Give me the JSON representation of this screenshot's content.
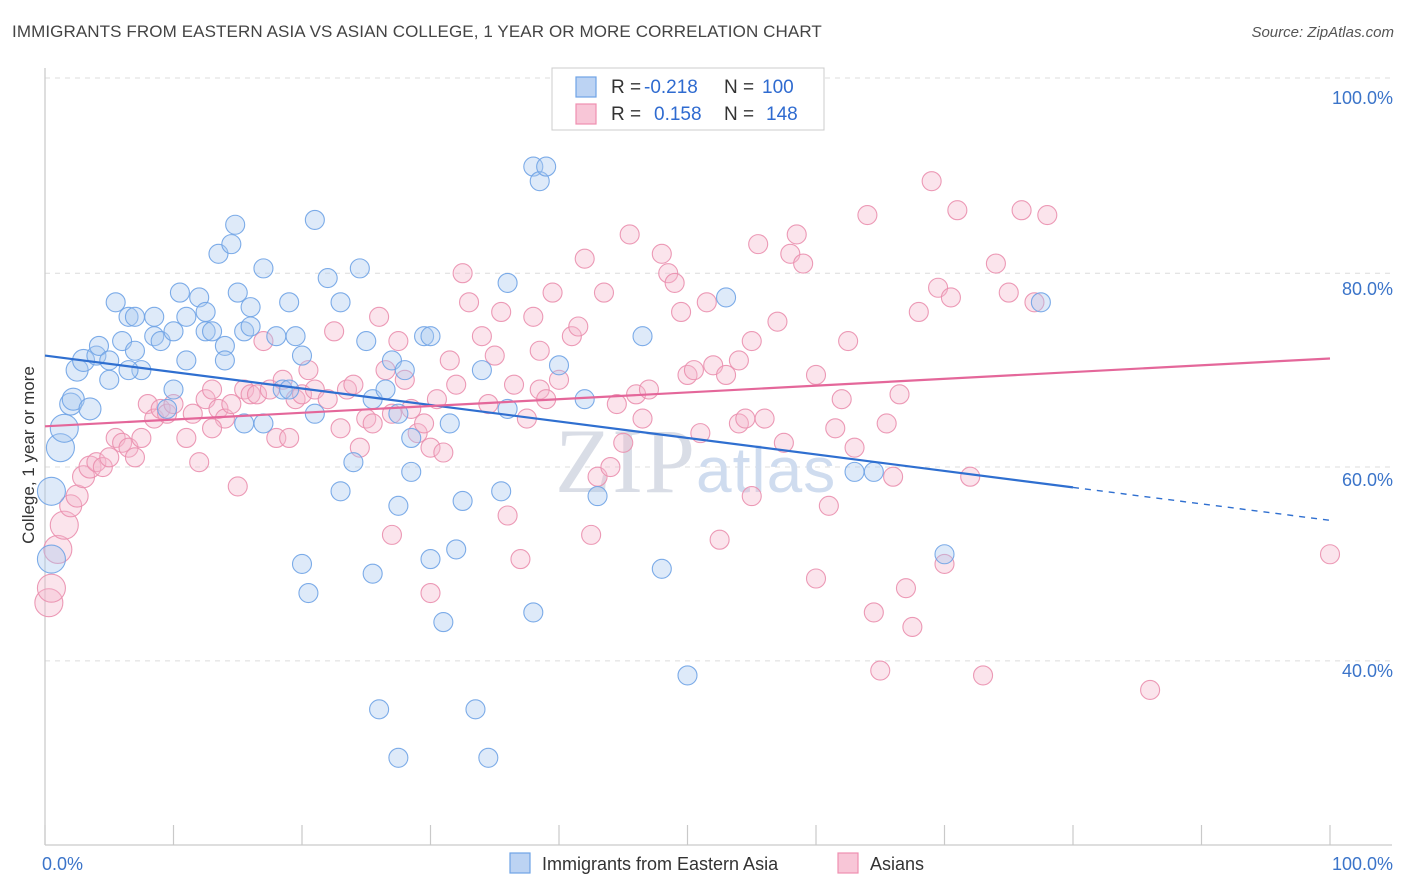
{
  "title": "IMMIGRANTS FROM EASTERN ASIA VS ASIAN COLLEGE, 1 YEAR OR MORE CORRELATION CHART",
  "source": "Source: ZipAtlas.com",
  "watermark": "ZIPatlas",
  "legend": {
    "row1": {
      "r_label": "R =",
      "r_value": "-0.218",
      "n_label": "N =",
      "n_value": "100"
    },
    "row2": {
      "r_label": "R =",
      "r_value": "0.158",
      "n_label": "N =",
      "n_value": "148"
    }
  },
  "chart_data": {
    "type": "scatter",
    "title": "IMMIGRANTS FROM EASTERN ASIA VS ASIAN COLLEGE, 1 YEAR OR MORE CORRELATION CHART",
    "xlabel": "",
    "ylabel": "College, 1 year or more",
    "xlim": [
      0,
      100
    ],
    "ylim": [
      21,
      102
    ],
    "x_tick_labels": [
      "0.0%",
      "100.0%"
    ],
    "y_tick_labels": [
      "100.0%",
      "80.0%",
      "60.0%",
      "40.0%"
    ],
    "y_ticks": [
      100,
      80,
      60,
      40
    ],
    "grid": true,
    "legend_position": "top-center",
    "colors": {
      "blue": "#6fa3e6",
      "pink": "#ef8fb0",
      "blue_line": "#2f6fd0",
      "pink_line": "#e4679a"
    },
    "series": [
      {
        "name": "Immigrants from Eastern Asia",
        "color": "#6fa3e6",
        "trend": {
          "x0": 0,
          "y0": 71.5,
          "x1": 80,
          "y1": 57.9,
          "dashed_to_x": 100,
          "dashed_to_y": 54.5
        },
        "points": [
          [
            0.5,
            57.5
          ],
          [
            0.5,
            50.5
          ],
          [
            1.2,
            62
          ],
          [
            1.5,
            64
          ],
          [
            2,
            66.5
          ],
          [
            2.2,
            67
          ],
          [
            3.5,
            66
          ],
          [
            2.5,
            70
          ],
          [
            3,
            71
          ],
          [
            4,
            71.5
          ],
          [
            4.2,
            72.5
          ],
          [
            5,
            71
          ],
          [
            5,
            69
          ],
          [
            5.5,
            77
          ],
          [
            6,
            73
          ],
          [
            6.5,
            75.5
          ],
          [
            7,
            75.5
          ],
          [
            7,
            72
          ],
          [
            7.5,
            70
          ],
          [
            8.5,
            75.5
          ],
          [
            8.5,
            73.5
          ],
          [
            9,
            73
          ],
          [
            9.5,
            66
          ],
          [
            10,
            74
          ],
          [
            10.5,
            78
          ],
          [
            11,
            75.5
          ],
          [
            11,
            71
          ],
          [
            12,
            77.5
          ],
          [
            12.5,
            76
          ],
          [
            12.5,
            74
          ],
          [
            13,
            74
          ],
          [
            13.5,
            82
          ],
          [
            14,
            72.5
          ],
          [
            14,
            71
          ],
          [
            14.5,
            83
          ],
          [
            14.8,
            85
          ],
          [
            15,
            78
          ],
          [
            15.5,
            74
          ],
          [
            16,
            74.5
          ],
          [
            16,
            76.5
          ],
          [
            17,
            80.5
          ],
          [
            17,
            64.5
          ],
          [
            18,
            73.5
          ],
          [
            18.5,
            68
          ],
          [
            19,
            77
          ],
          [
            19.5,
            73.5
          ],
          [
            20,
            71.5
          ],
          [
            20,
            50
          ],
          [
            20.5,
            47
          ],
          [
            21,
            65.5
          ],
          [
            21,
            85.5
          ],
          [
            22,
            79.5
          ],
          [
            23,
            77
          ],
          [
            23,
            57.5
          ],
          [
            24,
            60.5
          ],
          [
            24.5,
            80.5
          ],
          [
            25,
            73
          ],
          [
            25.5,
            67
          ],
          [
            25.5,
            49
          ],
          [
            26.5,
            68
          ],
          [
            27,
            71
          ],
          [
            27.5,
            65.5
          ],
          [
            27.5,
            56
          ],
          [
            28,
            70
          ],
          [
            28.5,
            63
          ],
          [
            28.5,
            59.5
          ],
          [
            29.5,
            73.5
          ],
          [
            30,
            73.5
          ],
          [
            30,
            50.5
          ],
          [
            31,
            44
          ],
          [
            31.5,
            64.5
          ],
          [
            32,
            51.5
          ],
          [
            32.5,
            56.5
          ],
          [
            33.5,
            35
          ],
          [
            34,
            70
          ],
          [
            35.5,
            57.5
          ],
          [
            36,
            79
          ],
          [
            38,
            91
          ],
          [
            38.5,
            89.5
          ],
          [
            39,
            91
          ],
          [
            38,
            45
          ],
          [
            40,
            70.5
          ],
          [
            42,
            67
          ],
          [
            43,
            57
          ],
          [
            46.5,
            73.5
          ],
          [
            48,
            49.5
          ],
          [
            50,
            38.5
          ],
          [
            53,
            77.5
          ],
          [
            63,
            59.5
          ],
          [
            64.5,
            59.5
          ],
          [
            70,
            51
          ],
          [
            77.5,
            77
          ],
          [
            15.5,
            64.5
          ],
          [
            10,
            68
          ],
          [
            36,
            66
          ],
          [
            27.5,
            30
          ],
          [
            34.5,
            30
          ],
          [
            26,
            35
          ],
          [
            19,
            68
          ],
          [
            6.5,
            70
          ]
        ]
      },
      {
        "name": "Asians",
        "color": "#ef8fb0",
        "trend": {
          "x0": 0,
          "y0": 64.2,
          "x1": 100,
          "y1": 71.2
        },
        "points": [
          [
            0.3,
            46
          ],
          [
            0.5,
            47.5
          ],
          [
            1,
            51.5
          ],
          [
            1.5,
            54
          ],
          [
            2,
            56
          ],
          [
            2.5,
            57
          ],
          [
            3,
            59
          ],
          [
            3.5,
            60
          ],
          [
            4,
            60.5
          ],
          [
            4.5,
            60
          ],
          [
            5,
            61
          ],
          [
            5.5,
            63
          ],
          [
            6,
            62.5
          ],
          [
            6.5,
            62
          ],
          [
            7,
            61
          ],
          [
            7.5,
            63
          ],
          [
            8,
            66.5
          ],
          [
            8.5,
            65
          ],
          [
            9,
            66
          ],
          [
            9.5,
            65.5
          ],
          [
            10,
            66.5
          ],
          [
            11,
            63
          ],
          [
            11.5,
            65.5
          ],
          [
            12,
            60.5
          ],
          [
            12.5,
            67
          ],
          [
            13,
            68
          ],
          [
            13.5,
            66
          ],
          [
            14,
            65
          ],
          [
            14.5,
            66.5
          ],
          [
            15,
            58
          ],
          [
            15.5,
            68
          ],
          [
            16,
            67.5
          ],
          [
            16.5,
            67.5
          ],
          [
            17,
            73
          ],
          [
            17.5,
            68
          ],
          [
            18,
            63
          ],
          [
            18.5,
            69
          ],
          [
            19,
            63
          ],
          [
            19.5,
            67
          ],
          [
            20,
            67.5
          ],
          [
            20.5,
            70
          ],
          [
            21,
            68
          ],
          [
            22,
            67
          ],
          [
            22.5,
            74
          ],
          [
            23,
            64
          ],
          [
            23.5,
            68
          ],
          [
            24,
            68.5
          ],
          [
            24.5,
            62
          ],
          [
            25,
            65
          ],
          [
            25.5,
            64.5
          ],
          [
            26,
            75.5
          ],
          [
            26.5,
            70
          ],
          [
            27,
            65.5
          ],
          [
            27.5,
            73
          ],
          [
            28,
            69
          ],
          [
            28.5,
            66
          ],
          [
            29,
            63.5
          ],
          [
            29.5,
            64.5
          ],
          [
            30,
            62
          ],
          [
            30.5,
            67
          ],
          [
            31,
            61.5
          ],
          [
            31.5,
            71
          ],
          [
            32,
            68.5
          ],
          [
            32.5,
            80
          ],
          [
            33,
            77
          ],
          [
            34,
            73.5
          ],
          [
            34.5,
            66.5
          ],
          [
            35,
            71.5
          ],
          [
            35.5,
            76
          ],
          [
            36,
            55
          ],
          [
            36.5,
            68.5
          ],
          [
            37,
            50.5
          ],
          [
            37.5,
            65
          ],
          [
            38,
            75.5
          ],
          [
            38.5,
            72
          ],
          [
            38.5,
            68
          ],
          [
            39,
            67
          ],
          [
            39.5,
            78
          ],
          [
            40,
            69
          ],
          [
            41,
            73.5
          ],
          [
            41.5,
            74.5
          ],
          [
            42,
            81.5
          ],
          [
            42.5,
            53
          ],
          [
            43,
            59
          ],
          [
            43.5,
            78
          ],
          [
            44.5,
            66.5
          ],
          [
            45,
            62.5
          ],
          [
            45.5,
            84
          ],
          [
            46,
            67.5
          ],
          [
            46.5,
            65
          ],
          [
            47,
            68
          ],
          [
            48,
            82
          ],
          [
            48.5,
            80
          ],
          [
            49,
            79
          ],
          [
            49.5,
            76
          ],
          [
            50,
            69.5
          ],
          [
            50.5,
            70
          ],
          [
            51,
            63.5
          ],
          [
            51.5,
            77
          ],
          [
            52,
            70.5
          ],
          [
            52.5,
            52.5
          ],
          [
            53,
            69.5
          ],
          [
            54,
            64.5
          ],
          [
            54.5,
            65
          ],
          [
            55,
            73
          ],
          [
            55.5,
            83
          ],
          [
            56,
            65
          ],
          [
            57,
            75
          ],
          [
            57.5,
            62.5
          ],
          [
            58,
            82
          ],
          [
            58.5,
            84
          ],
          [
            59,
            81
          ],
          [
            60,
            69.5
          ],
          [
            60,
            48.5
          ],
          [
            61,
            56
          ],
          [
            61.5,
            64
          ],
          [
            62,
            67
          ],
          [
            62.5,
            73
          ],
          [
            63,
            62
          ],
          [
            64,
            86
          ],
          [
            64.5,
            45
          ],
          [
            65,
            39
          ],
          [
            65.5,
            64.5
          ],
          [
            66,
            59
          ],
          [
            66.5,
            67.5
          ],
          [
            67,
            47.5
          ],
          [
            67.5,
            43.5
          ],
          [
            68,
            76
          ],
          [
            69,
            89.5
          ],
          [
            69.5,
            78.5
          ],
          [
            70,
            50
          ],
          [
            70.5,
            77.5
          ],
          [
            71,
            86.5
          ],
          [
            72,
            59
          ],
          [
            73,
            38.5
          ],
          [
            74,
            81
          ],
          [
            75,
            78
          ],
          [
            76,
            86.5
          ],
          [
            77,
            77
          ],
          [
            78,
            86
          ],
          [
            86,
            37
          ],
          [
            100,
            51
          ],
          [
            13,
            64
          ],
          [
            27,
            53
          ],
          [
            44,
            60
          ],
          [
            54,
            71
          ],
          [
            30,
            47
          ],
          [
            55,
            57
          ]
        ]
      }
    ],
    "series_sizes_note": "larger markers for the few points near x=0"
  },
  "bottom_legend": {
    "item1": "Immigrants from Eastern Asia",
    "item2": "Asians"
  }
}
